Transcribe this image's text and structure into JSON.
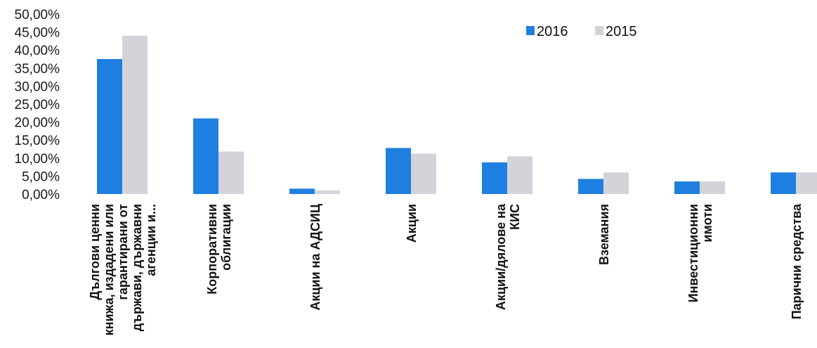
{
  "chart_data": {
    "type": "bar",
    "categories": [
      [
        "Дългови ценни",
        "книжа, издадени или",
        "гарантирани от",
        "държави, държавни",
        "агенции и..."
      ],
      [
        "Корпоративни",
        "облигации"
      ],
      [
        "Акции на АДСИЦ"
      ],
      [
        "Акции"
      ],
      [
        "Акции/дялове на",
        "КИС"
      ],
      [
        "Вземания"
      ],
      [
        "Инвестиционни",
        "имоти"
      ],
      [
        "Парични средства"
      ]
    ],
    "series": [
      {
        "name": "2016",
        "color": "#1f7fe0",
        "values": [
          37.5,
          21.0,
          1.5,
          12.8,
          8.8,
          4.2,
          3.5,
          6.0
        ]
      },
      {
        "name": "2015",
        "color": "#d2d4da",
        "values": [
          44.0,
          11.8,
          1.0,
          11.2,
          10.5,
          6.0,
          3.5,
          6.0
        ]
      }
    ],
    "y_ticks": [
      "0,00%",
      "5,00%",
      "10,00%",
      "15,00%",
      "20,00%",
      "25,00%",
      "30,00%",
      "35,00%",
      "40,00%",
      "45,00%",
      "50,00%"
    ],
    "ylim": [
      0,
      50
    ],
    "legend_position": "top-right",
    "grid": false
  }
}
